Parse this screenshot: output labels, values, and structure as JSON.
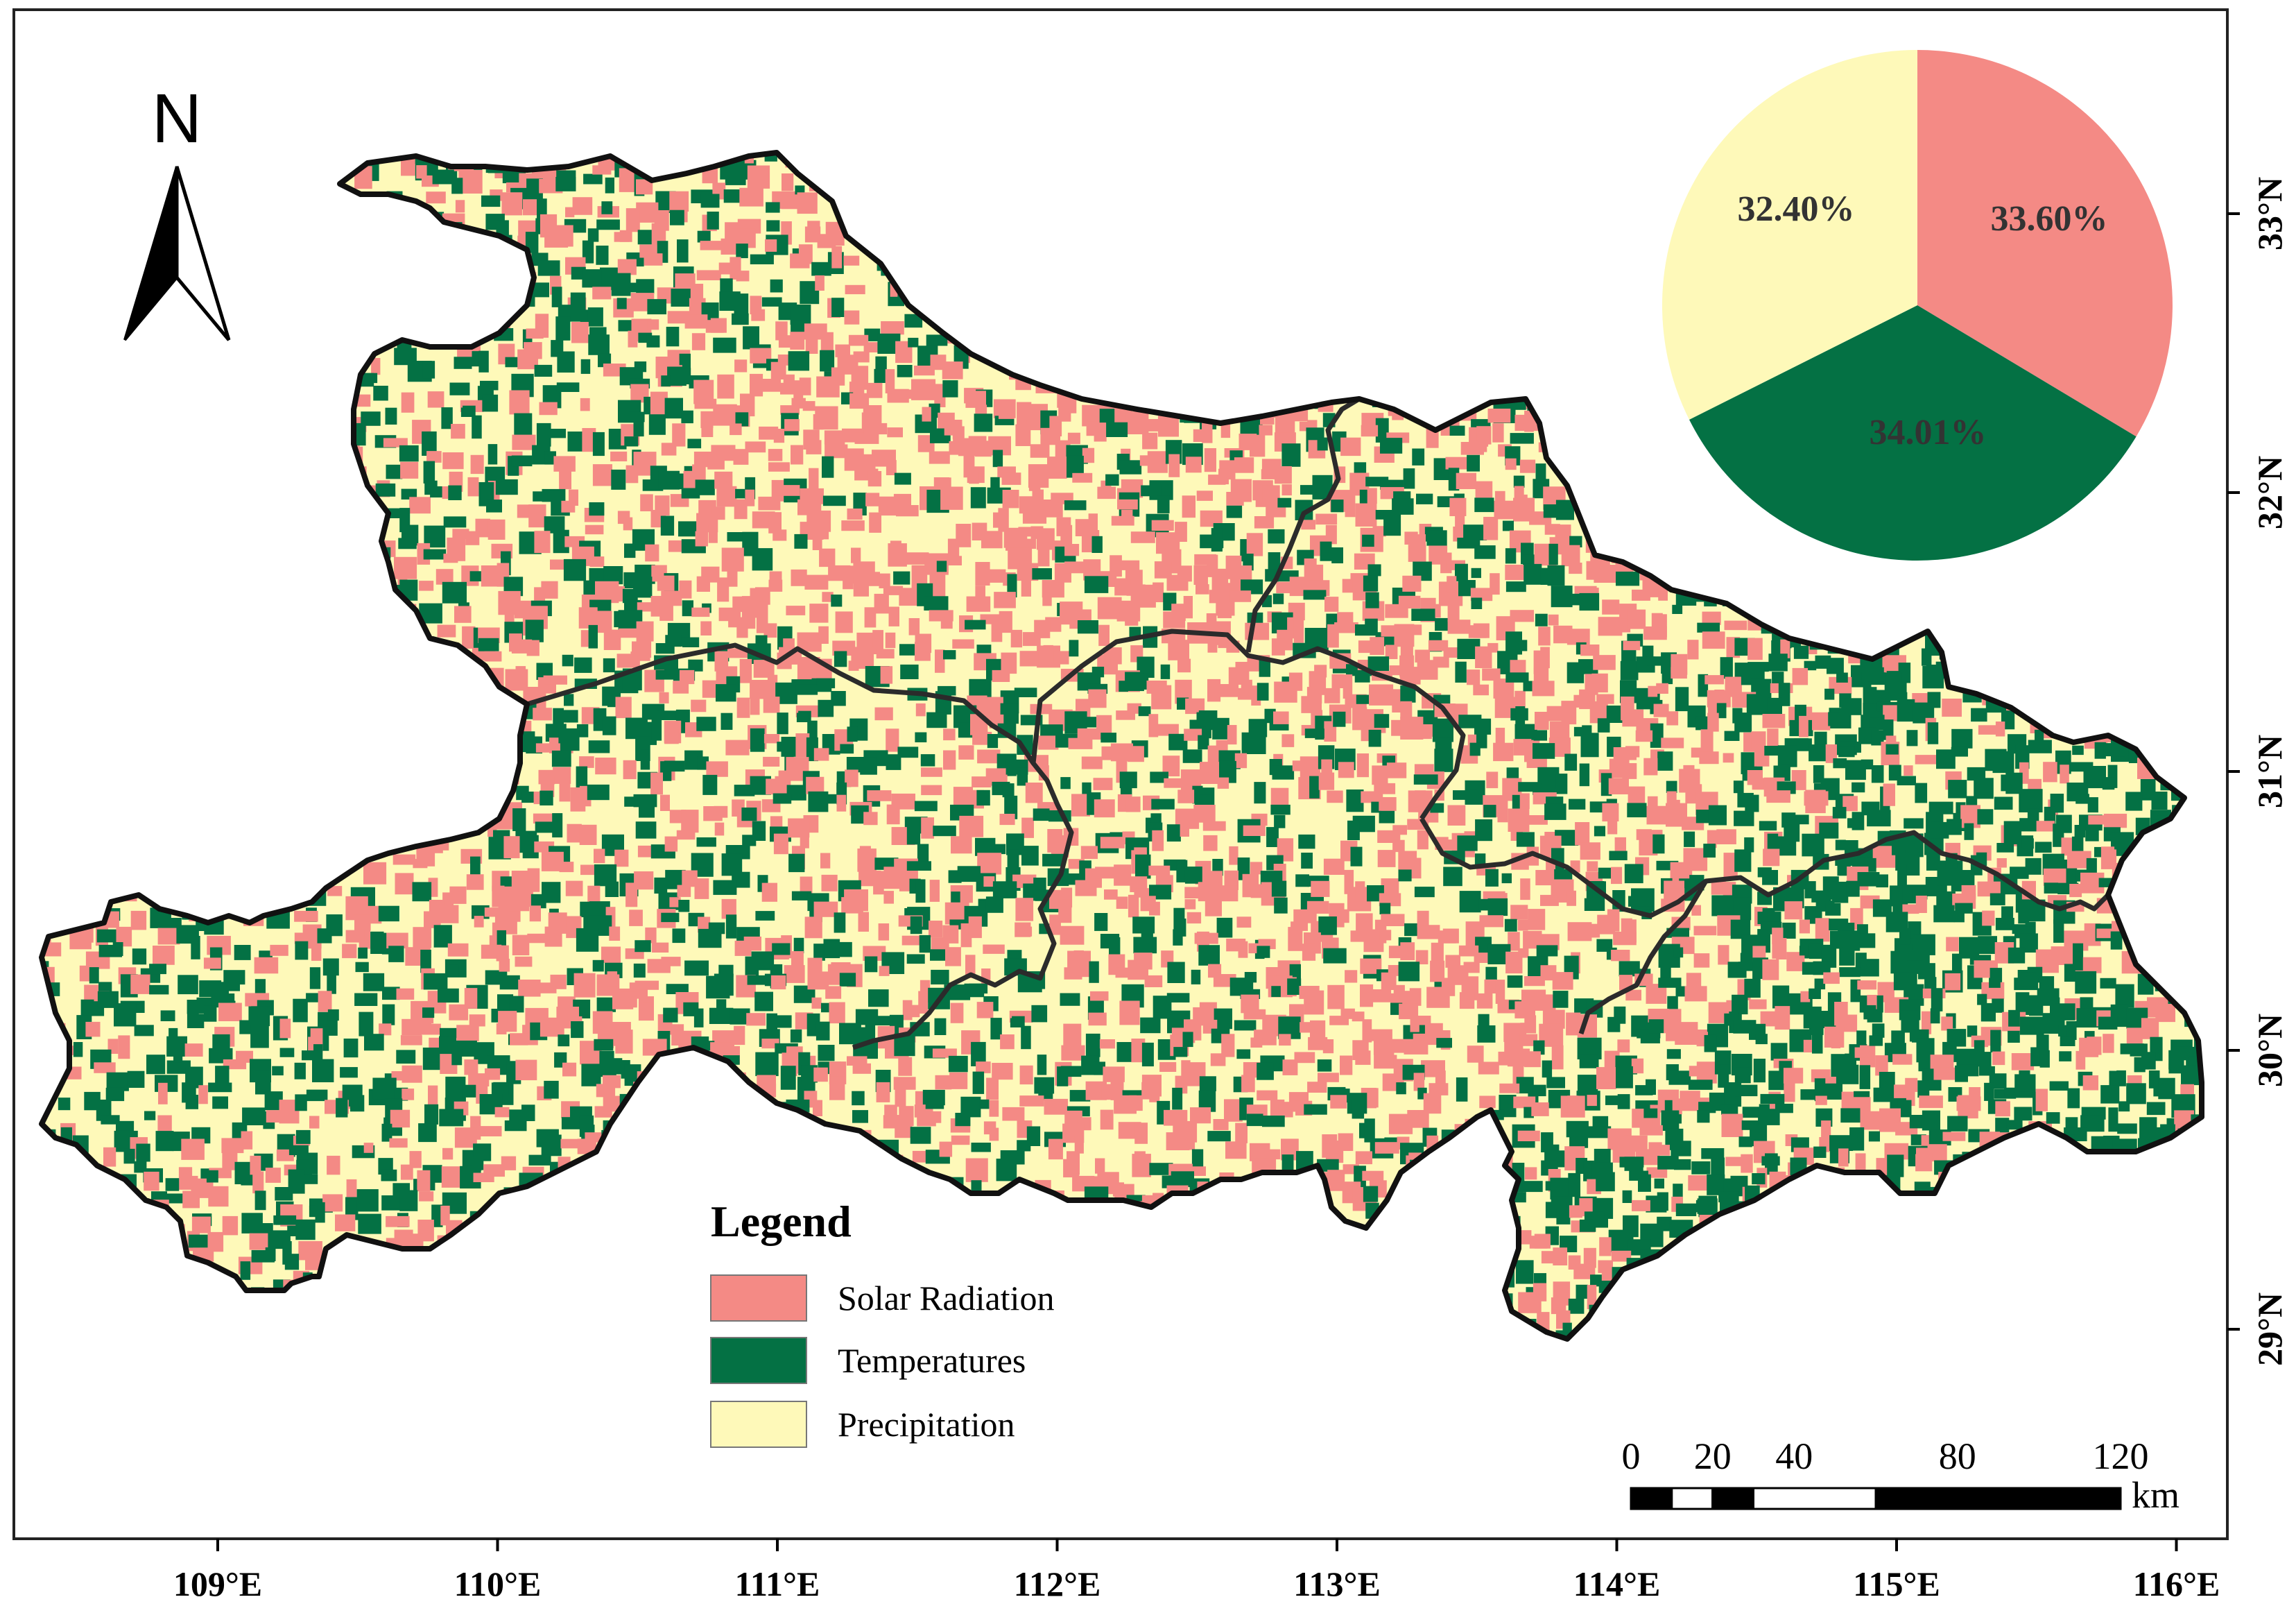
{
  "map": {
    "north_arrow_label": "N",
    "lon_ticks": [
      "109°E",
      "110°E",
      "111°E",
      "112°E",
      "113°E",
      "114°E",
      "115°E",
      "116°E"
    ],
    "lat_ticks": [
      "33°N",
      "32°N",
      "31°N",
      "30°N",
      "29°N"
    ],
    "colors": {
      "solar": "#f48a85",
      "temperature": "#047144",
      "precipitation": "#fef9b9"
    }
  },
  "legend": {
    "title": "Legend",
    "items": [
      {
        "key": "solar",
        "label": "Solar Radiation",
        "color": "#f48a85"
      },
      {
        "key": "temperature",
        "label": "Temperatures",
        "color": "#047144"
      },
      {
        "key": "precipitation",
        "label": "Precipitation",
        "color": "#fef9b9"
      }
    ]
  },
  "scale_bar": {
    "labels": [
      "0",
      "20",
      "40",
      "80",
      "120"
    ],
    "unit": "km"
  },
  "chart_data": {
    "type": "pie",
    "categories": [
      "Solar Radiation",
      "Temperatures",
      "Precipitation"
    ],
    "values": [
      33.6,
      34.01,
      32.4
    ],
    "labels": [
      "33.60%",
      "34.01%",
      "32.40%"
    ],
    "colors": [
      "#f48a85",
      "#047144",
      "#fef9b9"
    ]
  }
}
